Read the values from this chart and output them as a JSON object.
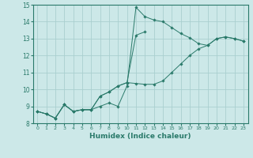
{
  "xlabel": "Humidex (Indice chaleur)",
  "bg_color": "#cce8e8",
  "grid_color": "#aacfcf",
  "line_color": "#2a7a6a",
  "xlim": [
    -0.5,
    23.5
  ],
  "ylim": [
    8,
    15
  ],
  "xticks": [
    0,
    1,
    2,
    3,
    4,
    5,
    6,
    7,
    8,
    9,
    10,
    11,
    12,
    13,
    14,
    15,
    16,
    17,
    18,
    19,
    20,
    21,
    22,
    23
  ],
  "yticks": [
    8,
    9,
    10,
    11,
    12,
    13,
    14,
    15
  ],
  "series": [
    {
      "x": [
        0,
        1,
        2,
        3,
        4,
        5,
        6,
        7,
        8,
        9,
        10,
        11,
        12,
        13,
        14,
        15,
        16,
        17,
        18,
        19,
        20,
        21,
        22,
        23
      ],
      "y": [
        8.7,
        8.55,
        8.3,
        9.1,
        8.7,
        8.8,
        8.8,
        9.0,
        9.2,
        9.0,
        10.2,
        14.85,
        14.3,
        14.1,
        14.0,
        13.65,
        13.3,
        13.05,
        12.7,
        12.6,
        13.0,
        13.1,
        13.0,
        12.85
      ]
    },
    {
      "x": [
        0,
        1,
        2,
        3,
        4,
        5,
        6,
        7,
        8,
        9,
        10,
        11,
        12
      ],
      "y": [
        8.7,
        8.55,
        8.3,
        9.1,
        8.7,
        8.8,
        8.8,
        9.6,
        9.85,
        10.2,
        10.4,
        13.2,
        13.4
      ]
    },
    {
      "x": [
        0,
        1,
        2,
        3,
        4,
        5,
        6,
        7,
        8,
        9,
        10,
        11,
        12,
        13,
        14,
        15,
        16,
        17,
        18,
        19,
        20,
        21,
        22,
        23
      ],
      "y": [
        8.7,
        8.55,
        8.3,
        9.1,
        8.7,
        8.8,
        8.8,
        9.6,
        9.85,
        10.2,
        10.4,
        10.35,
        10.3,
        10.3,
        10.5,
        11.0,
        11.5,
        12.0,
        12.4,
        12.6,
        13.0,
        13.1,
        13.0,
        12.85
      ]
    }
  ]
}
